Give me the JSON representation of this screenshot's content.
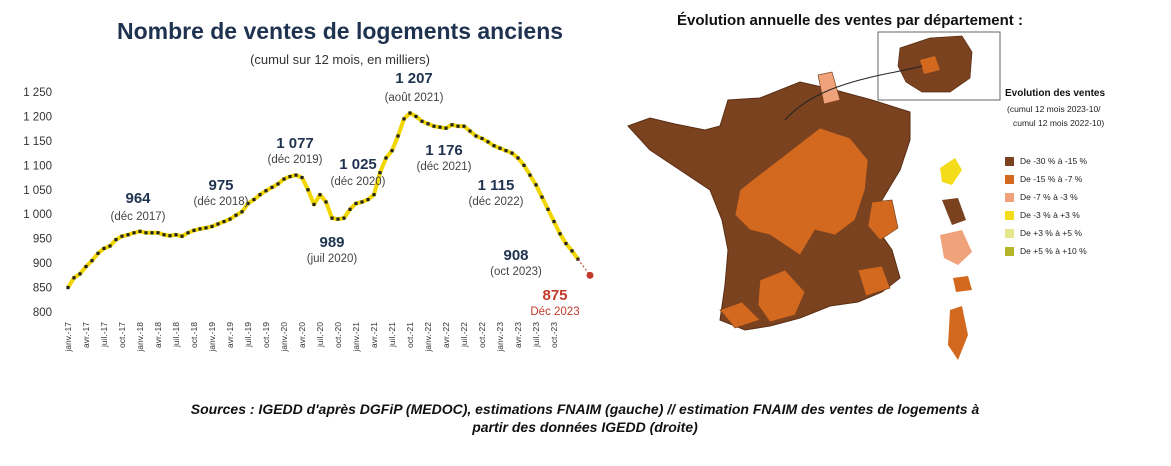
{
  "chart_data": {
    "type": "line",
    "title": "Nombre de ventes de logements anciens",
    "subtitle": "(cumul sur 12 mois, en milliers)",
    "ylim": [
      800,
      1250
    ],
    "yticks": [
      "800",
      "850",
      "900",
      "950",
      "1 000",
      "1 050",
      "1 100",
      "1 150",
      "1 200",
      "1 250"
    ],
    "ytick_values": [
      800,
      850,
      900,
      950,
      1000,
      1050,
      1100,
      1150,
      1200,
      1250
    ],
    "xtick_labels": [
      "janv.-17",
      "avr.-17",
      "juil.-17",
      "oct.-17",
      "janv.-18",
      "avr.-18",
      "juil.-18",
      "oct.-18",
      "janv.-19",
      "avr.-19",
      "juil.-19",
      "oct.-19",
      "janv.-20",
      "avr.-20",
      "juil.-20",
      "oct.-20",
      "janv.-21",
      "avr.-21",
      "juil.-21",
      "oct.-21",
      "janv.-22",
      "avr.-22",
      "juil.-22",
      "oct.-22",
      "janv.-23",
      "avr.-23",
      "juil.-23",
      "oct.-23"
    ],
    "series": [
      {
        "values": [
          850,
          870,
          878,
          893,
          905,
          920,
          930,
          935,
          948,
          955,
          958,
          962,
          965,
          962,
          962,
          962,
          958,
          956,
          958,
          955,
          962,
          967,
          970,
          972,
          975,
          980,
          985,
          990,
          998,
          1005,
          1022,
          1030,
          1040,
          1048,
          1055,
          1062,
          1072,
          1077,
          1080,
          1075,
          1050,
          1020,
          1040,
          1025,
          992,
          990,
          992,
          1010,
          1022,
          1025,
          1030,
          1040,
          1085,
          1115,
          1130,
          1160,
          1195,
          1207,
          1200,
          1190,
          1185,
          1180,
          1178,
          1176,
          1183,
          1180,
          1180,
          1170,
          1160,
          1155,
          1148,
          1140,
          1135,
          1130,
          1125,
          1115,
          1100,
          1080,
          1060,
          1035,
          1010,
          985,
          960,
          940,
          925,
          908
        ]
      }
    ],
    "forecast_point": {
      "value": 875
    },
    "annotations": [
      {
        "value": "964",
        "label": "(déc 2017)"
      },
      {
        "value": "975",
        "label": "(déc 2018)"
      },
      {
        "value": "1 077",
        "label": "(déc 2019)"
      },
      {
        "value": "1 025",
        "label": "(déc 2020)"
      },
      {
        "value": "989",
        "label": "(juil 2020)"
      },
      {
        "value": "1 207",
        "label": "(août 2021)"
      },
      {
        "value": "1 176",
        "label": "(déc 2021)"
      },
      {
        "value": "1 115",
        "label": "(déc 2022)"
      },
      {
        "value": "908",
        "label": "(oct 2023)"
      },
      {
        "value": "875",
        "label": "Déc 2023"
      }
    ],
    "colors": {
      "line": "#f2d600",
      "markers": "#222222",
      "forecast": "#c0392b",
      "forecast_dash": "#c0392b"
    }
  },
  "map": {
    "title": "Évolution annuelle des ventes par département :",
    "legend": {
      "title": "Evolution des ventes",
      "subtitle_1": "(cumul 12 mois 2023-10/",
      "subtitle_2": "cumul 12 mois 2022-10)",
      "items": [
        {
          "label": "De -30 % à -15 %",
          "color": "#7b4220"
        },
        {
          "label": "De -15 % à -7 %",
          "color": "#d2691e"
        },
        {
          "label": "De -7 % à -3 %",
          "color": "#f0a37a"
        },
        {
          "label": "De -3 % à +3 %",
          "color": "#f5dc1a"
        },
        {
          "label": "De +3 % à +5 %",
          "color": "#e6e68c"
        },
        {
          "label": "De +5 % à +10 %",
          "color": "#b5b52a"
        }
      ]
    }
  },
  "sources": {
    "line1": "Sources : IGEDD d'après DGFiP (MEDOC), estimations FNAIM (gauche) // estimation FNAIM des ventes de logements à",
    "line2": "partir des données IGEDD (droite)"
  }
}
